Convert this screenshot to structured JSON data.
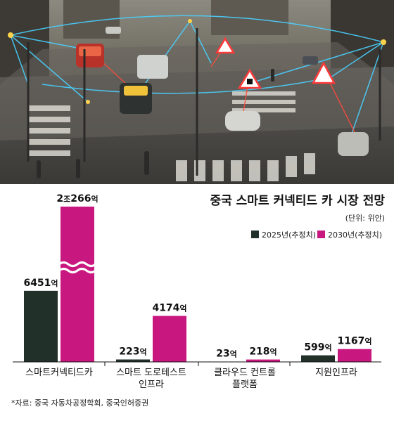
{
  "chart_data": {
    "type": "bar",
    "title": "중국 스마트 커넥티드 카 시장 전망",
    "unit_note": "(단위: 위안)",
    "categories": [
      [
        "스마트커넥티드카"
      ],
      [
        "스마트 도로테스트",
        "인프라"
      ],
      [
        "클라우드 컨트롤",
        "플랫폼"
      ],
      [
        "지원인프라"
      ]
    ],
    "series": [
      {
        "name": "2025년(추정치)",
        "color": "#22302a",
        "values": [
          6451,
          223,
          23,
          599
        ],
        "labels": [
          [
            {
              "t": "6451",
              "big": true
            },
            {
              "t": "억",
              "big": false
            }
          ],
          [
            {
              "t": "223",
              "big": true
            },
            {
              "t": "억",
              "big": false
            }
          ],
          [
            {
              "t": "23",
              "big": true
            },
            {
              "t": "억",
              "big": false
            }
          ],
          [
            {
              "t": "599",
              "big": true
            },
            {
              "t": "억",
              "big": false
            }
          ]
        ]
      },
      {
        "name": "2030년(추정치)",
        "color": "#c8177f",
        "values": [
          20266,
          4174,
          218,
          1167
        ],
        "labels": [
          [
            {
              "t": "2",
              "big": true
            },
            {
              "t": "조",
              "big": false
            },
            {
              "t": "266",
              "big": true
            },
            {
              "t": "억",
              "big": false
            }
          ],
          [
            {
              "t": "4174",
              "big": true
            },
            {
              "t": "억",
              "big": false
            }
          ],
          [
            {
              "t": "218",
              "big": true
            },
            {
              "t": "억",
              "big": false
            }
          ],
          [
            {
              "t": "1167",
              "big": true
            },
            {
              "t": "억",
              "big": false
            }
          ]
        ]
      }
    ],
    "axis_break": {
      "category_index": 0,
      "series_index": 1
    },
    "legend_placement": "top-right",
    "source": "*자료: 중국 자동차공정학회, 중국인허증권"
  }
}
